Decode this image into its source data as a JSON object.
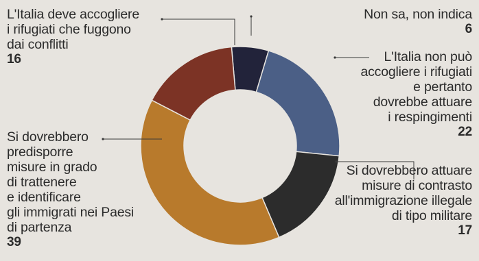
{
  "chart_data": {
    "type": "pie",
    "donut": true,
    "start_angle_deg": -5,
    "direction": "clockwise",
    "slices": [
      {
        "label": "Non sa, non indica",
        "value": 6,
        "color": "#22233a"
      },
      {
        "label": "L'Italia non può\naccogliere i rifugiati\ne pertanto\ndovrebbe attuare\ni respingimenti",
        "value": 22,
        "color": "#4b5f86"
      },
      {
        "label": "Si dovrebbero attuare\nmisure di contrasto\nall'immigrazione illegale\ndi tipo militare",
        "value": 17,
        "color": "#2c2c2c"
      },
      {
        "label": "Si dovrebbero\npredisporre\nmisure in grado\ndi trattenere\ne identificare\ngli immigrati nei Paesi\ndi partenza",
        "value": 39,
        "color": "#b87a2c"
      },
      {
        "label": "L'Italia deve accogliere\ni rifugiati che fuggono\ndai conflitti",
        "value": 16,
        "color": "#7c3325"
      }
    ]
  }
}
